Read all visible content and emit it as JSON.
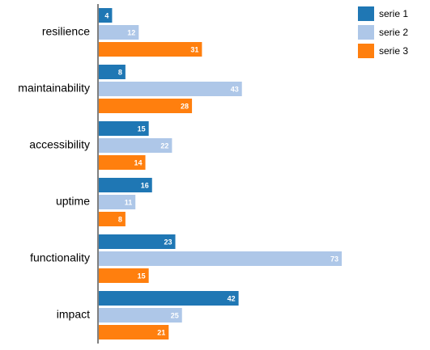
{
  "chart_data": {
    "type": "bar",
    "orientation": "horizontal",
    "title": "",
    "xlabel": "",
    "ylabel": "",
    "categories": [
      "resilience",
      "maintainability",
      "accessibility",
      "uptime",
      "functionality",
      "impact"
    ],
    "series": [
      {
        "name": "serie 1",
        "color": "#1f77b4",
        "values": [
          4,
          8,
          15,
          16,
          23,
          42
        ]
      },
      {
        "name": "serie 2",
        "color": "#aec7e8",
        "values": [
          12,
          43,
          22,
          11,
          73,
          25
        ]
      },
      {
        "name": "serie 3",
        "color": "#ff7f0e",
        "values": [
          31,
          28,
          14,
          8,
          15,
          21
        ]
      }
    ],
    "xlim": [
      0,
      73
    ],
    "grid": false,
    "legend_position": "top-right"
  }
}
